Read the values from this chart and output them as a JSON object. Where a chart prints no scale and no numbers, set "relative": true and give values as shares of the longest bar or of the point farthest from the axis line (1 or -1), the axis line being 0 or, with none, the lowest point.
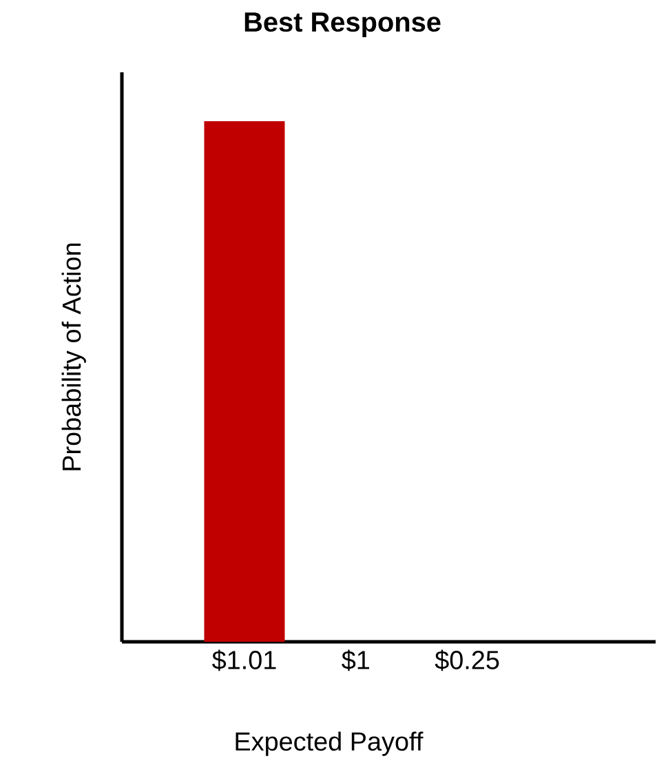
{
  "chart_data": {
    "type": "bar",
    "title": "Best Response",
    "xlabel": "Expected Payoff",
    "ylabel": "Probability of Action",
    "categories": [
      "$1.01",
      "$1",
      "$0.25"
    ],
    "values": [
      1,
      0,
      0
    ],
    "color": "#c00000",
    "relative": true
  }
}
